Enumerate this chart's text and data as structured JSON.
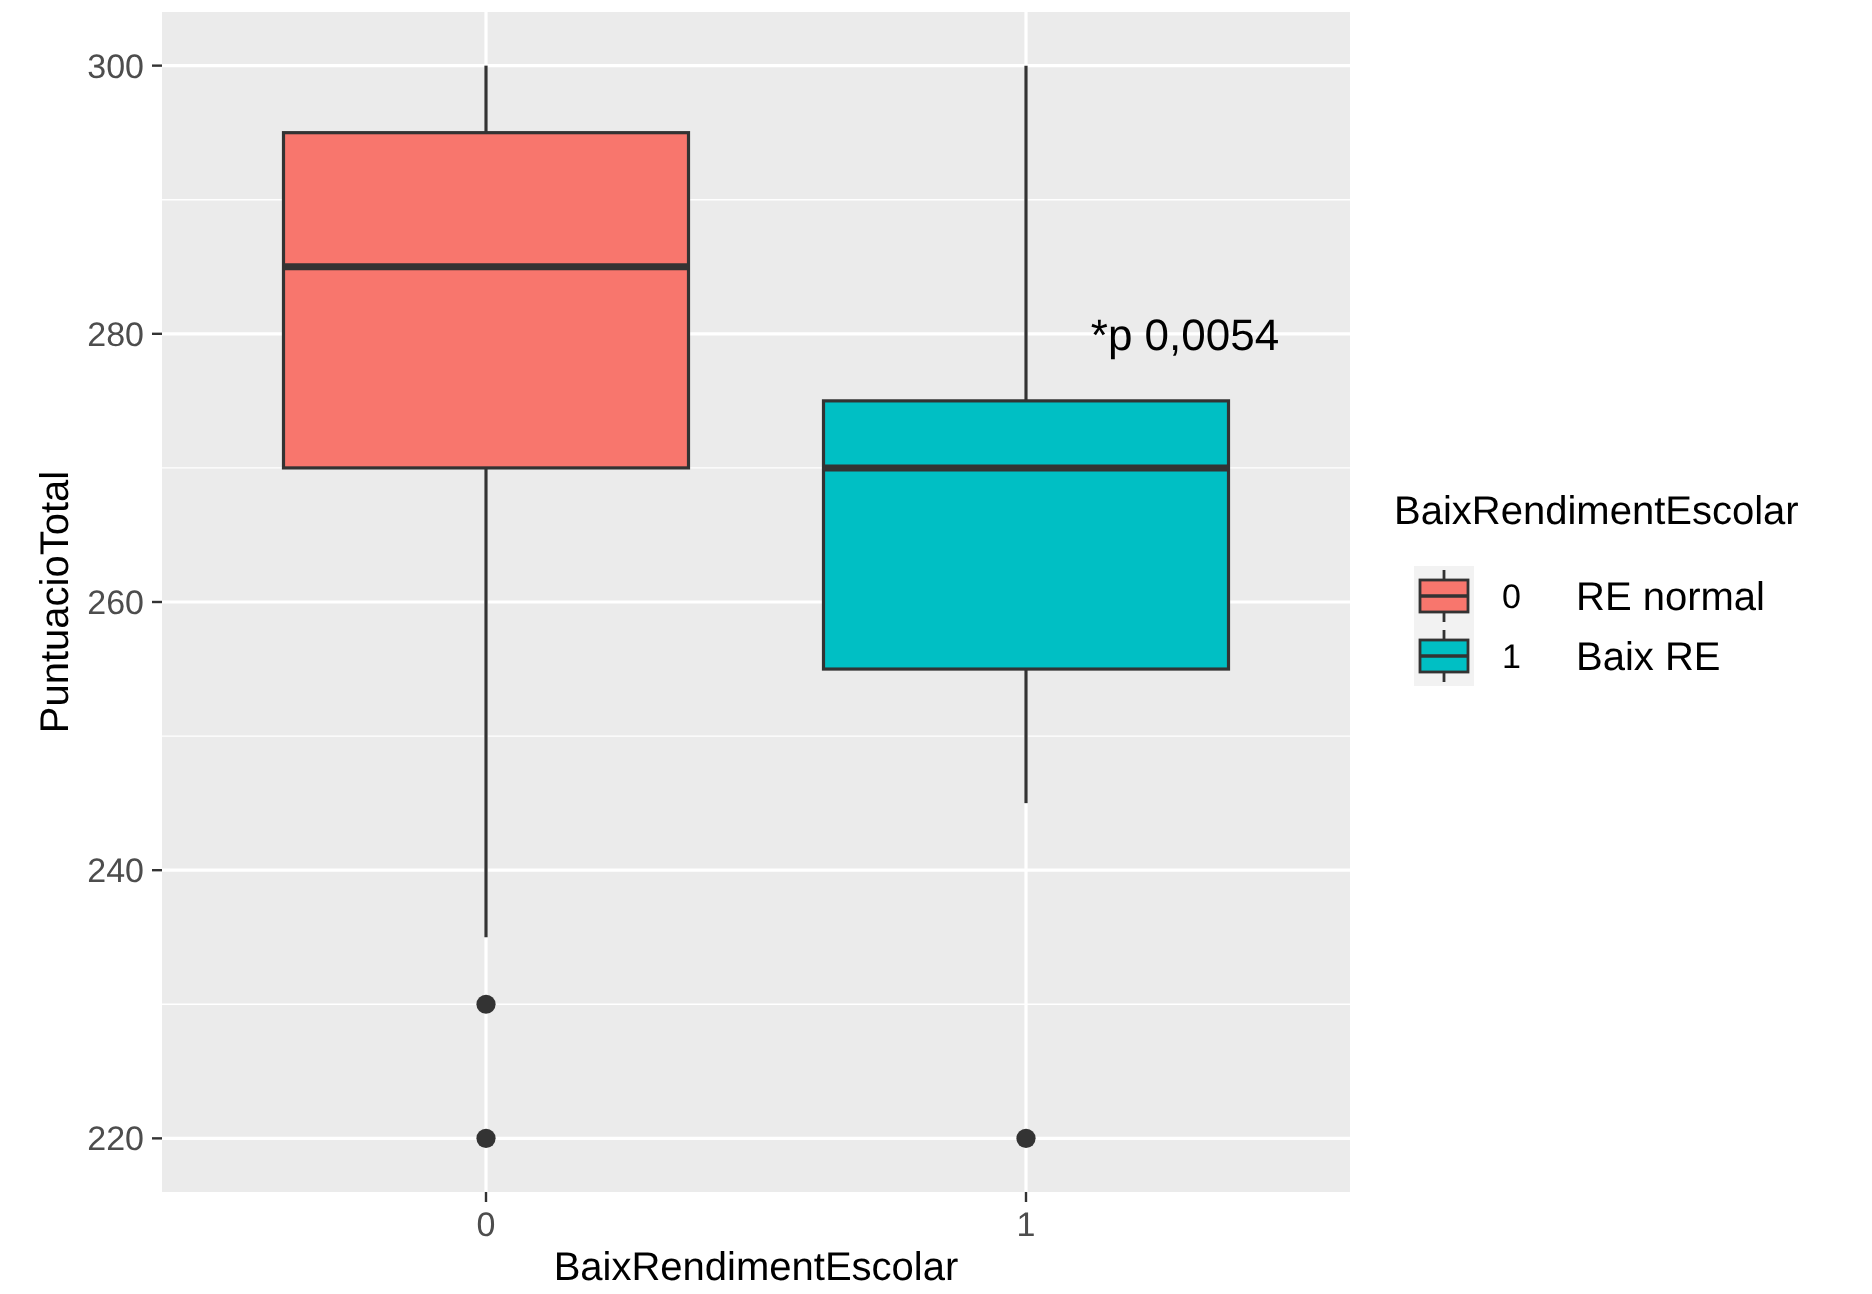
{
  "chart_data": {
    "type": "box",
    "xlabel": "BaixRendimentEscolar",
    "ylabel": "PuntuacioTotal",
    "legend_title": "BaixRendimentEscolar",
    "categories": [
      "0",
      "1"
    ],
    "series": [
      {
        "name": "0",
        "color": "#f8766d",
        "boxes": [
          {
            "low": 235,
            "q1": 270,
            "median": 285,
            "q3": 295,
            "high": 300,
            "outliers": [
              230,
              220
            ]
          },
          null
        ]
      },
      {
        "name": "1",
        "color": "#00bfc4",
        "boxes": [
          null,
          {
            "low": 245,
            "q1": 255,
            "median": 270,
            "q3": 275,
            "high": 300,
            "outliers": [
              220
            ]
          }
        ]
      }
    ],
    "ylim": [
      216,
      304
    ],
    "yticks": [
      220,
      240,
      260,
      280,
      300
    ],
    "grid": true,
    "legend": "right",
    "annotations": [
      {
        "text": "*p 0,0054",
        "x": "1",
        "y": 280
      },
      "RE normal",
      "Baix RE"
    ]
  }
}
